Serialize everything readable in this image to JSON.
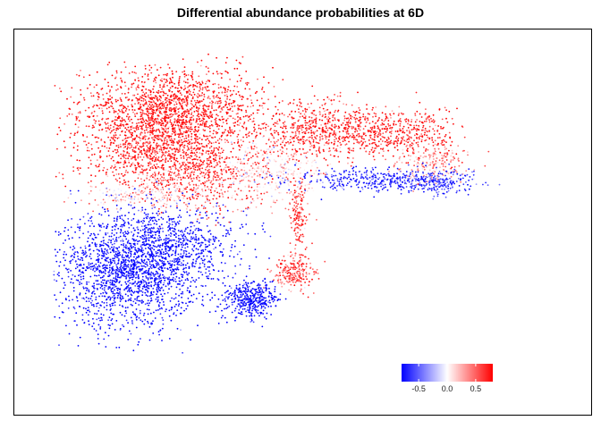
{
  "chart_data": {
    "type": "scatter",
    "title": "Differential abundance probabilities at 6D",
    "xlabel": "",
    "ylabel": "",
    "axes_visible": false,
    "grid": false,
    "point_size_hint": "tiny",
    "color_scale": {
      "type": "diverging",
      "low": "#0000ff",
      "mid": "#ffffff",
      "high": "#ff0000",
      "range": [
        -0.8,
        0.8
      ],
      "ticks": [
        -0.5,
        0.0,
        0.5
      ],
      "tick_labels": [
        "-0.5",
        "0.0",
        "0.5"
      ],
      "legend_placement": "bottom-right"
    },
    "clusters": [
      {
        "cx": 0.26,
        "cy": 0.8,
        "sx": 0.1,
        "sy": 0.07,
        "n": 1500,
        "value": 0.75
      },
      {
        "cx": 0.22,
        "cy": 0.66,
        "sx": 0.08,
        "sy": 0.07,
        "n": 900,
        "value": 0.7
      },
      {
        "cx": 0.33,
        "cy": 0.58,
        "sx": 0.07,
        "sy": 0.06,
        "n": 500,
        "value": 0.6
      },
      {
        "cx": 0.2,
        "cy": 0.52,
        "sx": 0.06,
        "sy": 0.025,
        "n": 200,
        "value": 0.1
      },
      {
        "cx": 0.48,
        "cy": 0.6,
        "sx": 0.06,
        "sy": 0.05,
        "n": 300,
        "value": 0.1
      },
      {
        "cx": 0.55,
        "cy": 0.73,
        "sx": 0.06,
        "sy": 0.05,
        "n": 500,
        "value": 0.65
      },
      {
        "cx": 0.72,
        "cy": 0.73,
        "sx": 0.08,
        "sy": 0.04,
        "n": 600,
        "value": 0.7
      },
      {
        "cx": 0.82,
        "cy": 0.63,
        "sx": 0.04,
        "sy": 0.03,
        "n": 200,
        "value": 0.4
      },
      {
        "cx": 0.72,
        "cy": 0.57,
        "sx": 0.1,
        "sy": 0.02,
        "n": 400,
        "value": -0.7
      },
      {
        "cx": 0.83,
        "cy": 0.56,
        "sx": 0.04,
        "sy": 0.02,
        "n": 150,
        "value": -0.6
      },
      {
        "cx": 0.16,
        "cy": 0.27,
        "sx": 0.08,
        "sy": 0.09,
        "n": 1700,
        "value": -0.85
      },
      {
        "cx": 0.26,
        "cy": 0.36,
        "sx": 0.07,
        "sy": 0.06,
        "n": 600,
        "value": -0.8
      },
      {
        "cx": 0.43,
        "cy": 0.18,
        "sx": 0.03,
        "sy": 0.03,
        "n": 400,
        "value": -0.85
      },
      {
        "cx": 0.52,
        "cy": 0.26,
        "sx": 0.025,
        "sy": 0.03,
        "n": 220,
        "value": 0.55
      },
      {
        "cx": 0.53,
        "cy": 0.45,
        "sx": 0.01,
        "sy": 0.06,
        "n": 150,
        "value": 0.6
      }
    ]
  }
}
